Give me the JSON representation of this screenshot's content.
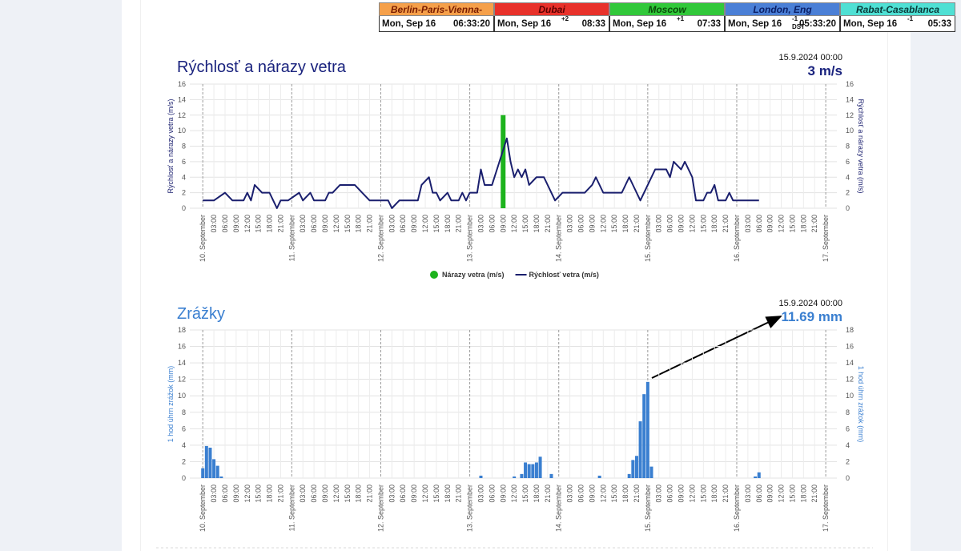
{
  "world_clocks": [
    {
      "city": "Berlin-Paris-Vienna-Roma",
      "color": "#f5a04a",
      "date": "Mon, Sep 16",
      "time": "06:33:20"
    },
    {
      "city": "Dubai",
      "color": "#e8312a",
      "date": "Mon, Sep 16",
      "offset": "+2",
      "time": "08:33"
    },
    {
      "city": "Moscow",
      "color": "#31c83a",
      "date": "Mon, Sep 16",
      "offset": "+1",
      "time": "07:33"
    },
    {
      "city": "London, Eng",
      "color": "#4a7fd6",
      "date": "Mon, Sep 16",
      "offset": "-1",
      "dst": "DST",
      "time": "05:33:20"
    },
    {
      "city": "Rabat-Casablanca",
      "color": "#4fe0d4",
      "date": "Mon, Sep 16",
      "offset": "-1",
      "time": "05:33"
    }
  ],
  "chart_data": [
    {
      "type": "line",
      "title": "Rýchlosť a nárazy vetra",
      "timestamp": "15.9.2024 00:00",
      "current": "3 m/s",
      "ylabel": "Rýchlosť a nárazy vetra (m/s)",
      "y2label": "Rýchlosť a nárazy vetra (m/s)",
      "xlim": [
        -3.5,
        171
      ],
      "xticks": [
        {
          "value": 0,
          "label": "10. September"
        },
        {
          "value": 3,
          "label": "03:00"
        },
        {
          "value": 6,
          "label": "06:00"
        },
        {
          "value": 9,
          "label": "09:00"
        },
        {
          "value": 12,
          "label": "12:00"
        },
        {
          "value": 15,
          "label": "15:00"
        },
        {
          "value": 18,
          "label": "18:00"
        },
        {
          "value": 21,
          "label": "21:00"
        },
        {
          "value": 24,
          "label": "11. September"
        },
        {
          "value": 27,
          "label": "03:00"
        },
        {
          "value": 30,
          "label": "06:00"
        },
        {
          "value": 33,
          "label": "09:00"
        },
        {
          "value": 36,
          "label": "12:00"
        },
        {
          "value": 39,
          "label": "15:00"
        },
        {
          "value": 42,
          "label": "18:00"
        },
        {
          "value": 45,
          "label": "21:00"
        },
        {
          "value": 48,
          "label": "12. September"
        },
        {
          "value": 51,
          "label": "03:00"
        },
        {
          "value": 54,
          "label": "06:00"
        },
        {
          "value": 57,
          "label": "09:00"
        },
        {
          "value": 60,
          "label": "12:00"
        },
        {
          "value": 63,
          "label": "15:00"
        },
        {
          "value": 66,
          "label": "18:00"
        },
        {
          "value": 69,
          "label": "21:00"
        },
        {
          "value": 72,
          "label": "13. September"
        },
        {
          "value": 75,
          "label": "03:00"
        },
        {
          "value": 78,
          "label": "06:00"
        },
        {
          "value": 81,
          "label": "09:00"
        },
        {
          "value": 84,
          "label": "12:00"
        },
        {
          "value": 87,
          "label": "15:00"
        },
        {
          "value": 90,
          "label": "18:00"
        },
        {
          "value": 93,
          "label": "21:00"
        },
        {
          "value": 96,
          "label": "14. September"
        },
        {
          "value": 99,
          "label": "03:00"
        },
        {
          "value": 102,
          "label": "06:00"
        },
        {
          "value": 105,
          "label": "09:00"
        },
        {
          "value": 108,
          "label": "12:00"
        },
        {
          "value": 111,
          "label": "15:00"
        },
        {
          "value": 114,
          "label": "18:00"
        },
        {
          "value": 117,
          "label": "21:00"
        },
        {
          "value": 120,
          "label": "15. September"
        },
        {
          "value": 123,
          "label": "03:00"
        },
        {
          "value": 126,
          "label": "06:00"
        },
        {
          "value": 129,
          "label": "09:00"
        },
        {
          "value": 132,
          "label": "12:00"
        },
        {
          "value": 135,
          "label": "15:00"
        },
        {
          "value": 138,
          "label": "18:00"
        },
        {
          "value": 141,
          "label": "21:00"
        },
        {
          "value": 144,
          "label": "16. September"
        },
        {
          "value": 147,
          "label": "03:00"
        },
        {
          "value": 150,
          "label": "06:00"
        },
        {
          "value": 153,
          "label": "09:00"
        },
        {
          "value": 156,
          "label": "12:00"
        },
        {
          "value": 159,
          "label": "15:00"
        },
        {
          "value": 162,
          "label": "18:00"
        },
        {
          "value": 165,
          "label": "21:00"
        },
        {
          "value": 168,
          "label": "17. September"
        }
      ],
      "ylim": [
        0,
        16
      ],
      "yticks": [
        0,
        2,
        4,
        6,
        8,
        10,
        12,
        14,
        16
      ],
      "y2lim": [
        0,
        16
      ],
      "y2ticks": [
        0,
        2,
        4,
        6,
        8,
        10,
        12,
        14,
        16
      ],
      "grid": true,
      "legend": "bottom",
      "series": [
        {
          "name": "Nárazy vetra (m/s)",
          "type": "bar",
          "color": "#1db31d",
          "x": [
            81
          ],
          "values": [
            12
          ]
        },
        {
          "name": "Rýchlosť vetra (m/s)",
          "color": "#1a1f6e",
          "x": [
            0,
            3,
            6,
            8,
            11,
            12,
            13,
            14,
            16,
            18,
            19,
            20,
            21,
            23,
            26,
            27,
            29,
            30,
            33,
            34,
            35,
            37,
            41,
            43,
            45,
            50,
            51,
            53,
            58,
            59,
            61,
            62,
            63,
            64,
            66,
            67,
            69,
            70,
            71,
            72,
            74,
            75,
            76,
            78,
            80,
            82,
            83,
            84,
            85,
            86,
            87,
            88,
            90,
            92,
            95,
            97,
            103,
            105,
            106,
            108,
            110,
            113,
            115,
            117,
            118,
            120,
            121,
            122,
            125,
            126,
            127,
            129,
            130,
            131,
            132,
            133,
            135,
            136,
            137,
            138,
            139,
            141,
            142,
            143,
            150
          ],
          "values": [
            1,
            1,
            2,
            1,
            1,
            2,
            1,
            3,
            2,
            2,
            1,
            0,
            1,
            1,
            2,
            1,
            2,
            1,
            1,
            2,
            2,
            3,
            3,
            2,
            1,
            1,
            0,
            1,
            1,
            3,
            4,
            2,
            2,
            1,
            2,
            1,
            1,
            2,
            1,
            2,
            2,
            5,
            3,
            3,
            6,
            9,
            6,
            4,
            5,
            4,
            5,
            3,
            4,
            4,
            1,
            2,
            2,
            3,
            4,
            2,
            2,
            2,
            4,
            2,
            1,
            3,
            4,
            5,
            5,
            4,
            6,
            5,
            6,
            5,
            4,
            1,
            1,
            2,
            2,
            3,
            1,
            1,
            2,
            1,
            1
          ]
        }
      ]
    },
    {
      "type": "bar",
      "title": "Zrážky",
      "timestamp": "15.9.2024 00:00",
      "current": "11.69 mm",
      "ylabel": "1 hod úhrn zrážok (mm)",
      "y2label": "1 hod úhrn zrážok (mm)",
      "xlim": [
        -3.5,
        171
      ],
      "xticks": [
        {
          "value": 0,
          "label": "10. September"
        },
        {
          "value": 3,
          "label": "03:00"
        },
        {
          "value": 6,
          "label": "06:00"
        },
        {
          "value": 9,
          "label": "09:00"
        },
        {
          "value": 12,
          "label": "12:00"
        },
        {
          "value": 15,
          "label": "15:00"
        },
        {
          "value": 18,
          "label": "18:00"
        },
        {
          "value": 21,
          "label": "21:00"
        },
        {
          "value": 24,
          "label": "11. September"
        },
        {
          "value": 27,
          "label": "03:00"
        },
        {
          "value": 30,
          "label": "06:00"
        },
        {
          "value": 33,
          "label": "09:00"
        },
        {
          "value": 36,
          "label": "12:00"
        },
        {
          "value": 39,
          "label": "15:00"
        },
        {
          "value": 42,
          "label": "18:00"
        },
        {
          "value": 45,
          "label": "21:00"
        },
        {
          "value": 48,
          "label": "12. September"
        },
        {
          "value": 51,
          "label": "03:00"
        },
        {
          "value": 54,
          "label": "06:00"
        },
        {
          "value": 57,
          "label": "09:00"
        },
        {
          "value": 60,
          "label": "12:00"
        },
        {
          "value": 63,
          "label": "15:00"
        },
        {
          "value": 66,
          "label": "18:00"
        },
        {
          "value": 69,
          "label": "21:00"
        },
        {
          "value": 72,
          "label": "13. September"
        },
        {
          "value": 75,
          "label": "03:00"
        },
        {
          "value": 78,
          "label": "06:00"
        },
        {
          "value": 81,
          "label": "09:00"
        },
        {
          "value": 84,
          "label": "12:00"
        },
        {
          "value": 87,
          "label": "15:00"
        },
        {
          "value": 90,
          "label": "18:00"
        },
        {
          "value": 93,
          "label": "21:00"
        },
        {
          "value": 96,
          "label": "14. September"
        },
        {
          "value": 99,
          "label": "03:00"
        },
        {
          "value": 102,
          "label": "06:00"
        },
        {
          "value": 105,
          "label": "09:00"
        },
        {
          "value": 108,
          "label": "12:00"
        },
        {
          "value": 111,
          "label": "15:00"
        },
        {
          "value": 114,
          "label": "18:00"
        },
        {
          "value": 117,
          "label": "21:00"
        },
        {
          "value": 120,
          "label": "15. September"
        },
        {
          "value": 123,
          "label": "03:00"
        },
        {
          "value": 126,
          "label": "06:00"
        },
        {
          "value": 129,
          "label": "09:00"
        },
        {
          "value": 132,
          "label": "12:00"
        },
        {
          "value": 135,
          "label": "15:00"
        },
        {
          "value": 138,
          "label": "18:00"
        },
        {
          "value": 141,
          "label": "21:00"
        },
        {
          "value": 144,
          "label": "16. September"
        },
        {
          "value": 147,
          "label": "03:00"
        },
        {
          "value": 150,
          "label": "06:00"
        },
        {
          "value": 153,
          "label": "09:00"
        },
        {
          "value": 156,
          "label": "12:00"
        },
        {
          "value": 159,
          "label": "15:00"
        },
        {
          "value": 162,
          "label": "18:00"
        },
        {
          "value": 165,
          "label": "21:00"
        },
        {
          "value": 168,
          "label": "17. September"
        }
      ],
      "ylim": [
        0,
        18
      ],
      "yticks": [
        0,
        2,
        4,
        6,
        8,
        10,
        12,
        14,
        16,
        18
      ],
      "y2lim": [
        0,
        18
      ],
      "y2ticks": [
        0,
        2,
        4,
        6,
        8,
        10,
        12,
        14,
        16,
        18
      ],
      "grid": true,
      "color": "#3a7fd0",
      "x": [
        0,
        1,
        2,
        3,
        4,
        5,
        75,
        84,
        86,
        87,
        88,
        89,
        90,
        91,
        94,
        107,
        115,
        116,
        117,
        118,
        119,
        120,
        121,
        149,
        150
      ],
      "values": [
        1.2,
        3.9,
        3.7,
        2.3,
        1.5,
        0.2,
        0.3,
        0.2,
        0.5,
        1.9,
        1.7,
        1.7,
        1.9,
        2.6,
        0.5,
        0.3,
        0.5,
        2.2,
        2.7,
        6.9,
        10.2,
        11.69,
        1.4,
        0.2,
        0.7
      ]
    }
  ]
}
